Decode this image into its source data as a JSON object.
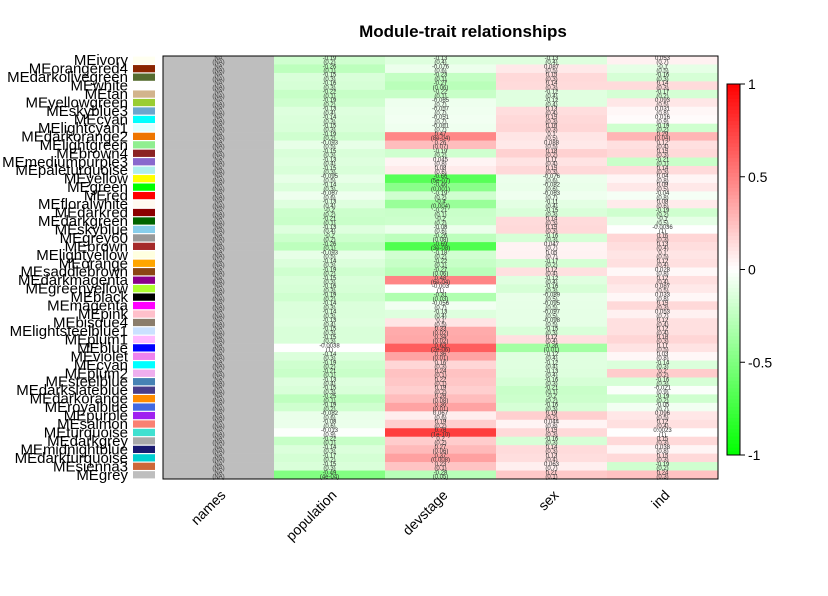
{
  "chart_data": {
    "type": "heatmap",
    "title": "Module-trait relationships",
    "columns": [
      "names",
      "population",
      "devstage",
      "sex",
      "ind"
    ],
    "rows": [
      "MEivory",
      "MEorangered4",
      "MEdarkolivegreen",
      "MEwhite",
      "MEtan",
      "MEyellowgreen",
      "MEskyblue3",
      "MEcyan",
      "MElightcyan1",
      "MEdarkorange2",
      "MElightgreen",
      "MEbrown4",
      "MEmediumpurple3",
      "MEpaleturquoise",
      "MEyellow",
      "MEgreen",
      "MEred",
      "MEfloralwhite",
      "MEdarkred",
      "MEdarkgreen",
      "MEskyblue",
      "MEgrey60",
      "MEbrown",
      "MElightyellow",
      "MEorange",
      "MEsaddlebrown",
      "MEdarkmagenta",
      "MEgreenyellow",
      "MEblack",
      "MEmagenta",
      "MEpink",
      "MEbisque4",
      "MElightsteelblue1",
      "MEplum1",
      "MEblue",
      "MEviolet",
      "MEcyan",
      "MEplum2",
      "MEsteelblue",
      "MEdarkslateblue",
      "MEdarkorange",
      "MEroyalblue",
      "MEpurple",
      "MEsalmon",
      "MEturquoise",
      "MEdarkgrey",
      "MEmidnightblue",
      "MEdarkturquoise",
      "MEsienna3",
      "MEgrey"
    ],
    "row_labels_visible": [
      "MEivory",
      "MEorangered4",
      "MEdarkolivegreen",
      "MEwhite",
      "MEtan",
      "MEyellowgreen",
      "MEskyblue3",
      "MEcyan",
      "MElightcyan1",
      "MEdarkorange2",
      "MElightgreen",
      "MEbrown4",
      "MEmediumpurple3",
      "MEpaleturquoise",
      "MEyellow",
      "MEgreen",
      "MEred",
      "MEfloralwhite",
      "MEdarkred",
      "MEdarkgreen",
      "MEskyblue",
      "MEgrey60",
      "MEbrown",
      "MElightyellow",
      "MEorange",
      "MEsaddlebrown",
      "MEdarkmagenta",
      "MEgreenyellow",
      "MEblack",
      "MEmagenta",
      "MEpink",
      "MEbisque4",
      "MElightsteelblue1",
      "MEplum1",
      "MEblue",
      "MEviolet",
      "MEcyan",
      "MEplum2",
      "MEsteelblue",
      "MEdarkslateblue",
      "MEdarkorange",
      "MEroyalblue",
      "MEpurple",
      "MEsalmon",
      "MEturquoise",
      "MEdarkgrey",
      "MEmidnightblue",
      "MEdarkturquoise",
      "MEsienna3",
      "MEgrey"
    ],
    "module_colors": [
      "#fffff0",
      "#8b2500",
      "#556b2f",
      "#ffffff",
      "#d2b48c",
      "#9acd32",
      "#6ca6cd",
      "#00ffff",
      "#e0ffff",
      "#ee7600",
      "#90ee90",
      "#8b2323",
      "#8968cd",
      "#afeeee",
      "#ffff00",
      "#00ff00",
      "#ff0000",
      "#fffaf0",
      "#8b0000",
      "#006400",
      "#87ceeb",
      "#999999",
      "#a52a2a",
      "#ffffe0",
      "#ffa500",
      "#8b4513",
      "#8b008b",
      "#adff2f",
      "#000000",
      "#ff00ff",
      "#ffc0cb",
      "#8b7d6b",
      "#cae1ff",
      "#ffbbff",
      "#0000ff",
      "#ee82ee",
      "#00ffff",
      "#eeaeee",
      "#4682b4",
      "#483d8b",
      "#ff8c00",
      "#4169e1",
      "#a020f0",
      "#fa8072",
      "#40e0d0",
      "#a9a9a9",
      "#191970",
      "#00ced1",
      "#cd6839",
      "#bebebe"
    ],
    "values": {
      "population": [
        -0.19,
        -0.26,
        -0.15,
        -0.16,
        -0.22,
        -0.19,
        -0.13,
        -0.14,
        -0.15,
        -0.19,
        -0.093,
        -0.15,
        -0.13,
        -0.15,
        -0.095,
        -0.14,
        -0.067,
        -0.13,
        -0.2,
        -0.21,
        -0.13,
        -0.2,
        -0.26,
        -0.093,
        -0.14,
        -0.19,
        -0.15,
        -0.16,
        -0.19,
        -0.14,
        -0.14,
        -0.13,
        -0.15,
        -0.15,
        -0.0038,
        -0.14,
        -0.19,
        -0.21,
        -0.13,
        -0.15,
        -0.25,
        -0.19,
        -0.082,
        -0.08,
        -0.013,
        -0.22,
        -0.14,
        -0.17,
        -0.15,
        -0.49
      ],
      "devstage": [
        -0.13,
        -0.076,
        -0.23,
        -0.27,
        -0.22,
        -0.065,
        -0.057,
        -0.051,
        -0.061,
        0.47,
        0.26,
        -0.19,
        0.045,
        0.08,
        -0.66,
        -0.46,
        -0.19,
        -0.4,
        -0.21,
        -0.2,
        -0.08,
        -0.26,
        -0.69,
        -0.18,
        -0.22,
        -0.27,
        0.48,
        -0.003,
        -0.31,
        -0.056,
        -0.13,
        0.1,
        0.33,
        0.34,
        0.63,
        0.36,
        0.16,
        0.24,
        0.22,
        0.19,
        0.26,
        0.36,
        0.067,
        0.19,
        0.76,
        0.2,
        0.27,
        0.37,
        0.23,
        -0.28
      ],
      "sex": [
        -0.13,
        0.087,
        0.15,
        0.14,
        -0.12,
        -0.12,
        0.13,
        0.15,
        0.16,
        0.1,
        0.088,
        0.18,
        0.11,
        0.15,
        -0.076,
        -0.082,
        -0.063,
        -0.11,
        -0.15,
        0.14,
        0.15,
        -0.16,
        0.047,
        0.05,
        -0.17,
        0.12,
        -0.12,
        -0.16,
        -0.089,
        -0.095,
        -0.097,
        -0.098,
        -0.15,
        0.12,
        -0.36,
        -0.12,
        -0.12,
        -0.13,
        -0.16,
        -0.21,
        -0.2,
        -0.16,
        0.19,
        0.044,
        0.15,
        -0.16,
        0.14,
        0.13,
        0.063,
        0.21
      ],
      "ind": [
        0.053,
        -0.1,
        -0.16,
        0.14,
        -0.17,
        0.093,
        0.031,
        0.016,
        -0.19,
        0.29,
        0.12,
        0.15,
        -0.21,
        0.14,
        0.04,
        0.09,
        -0.04,
        0.08,
        -0.19,
        -0.1,
        -0.0036,
        0.16,
        0.13,
        0.1,
        0.12,
        0.028,
        0.12,
        0.087,
        0.033,
        0.15,
        0.053,
        0.12,
        0.12,
        0.16,
        0.11,
        0.03,
        -0.14,
        0.2,
        -0.16,
        -0.021,
        -0.19,
        -0.05,
        0.096,
        0.12,
        0.0023,
        0.15,
        0.038,
        0.15,
        -0.19,
        0.24
      ]
    },
    "cell_text": {
      "names": [
        "(NA)",
        "(NA)",
        "(NA)",
        "(NA)",
        "(NA)",
        "(NA)",
        "(NA)",
        "(NA)",
        "(NA)",
        "(NA)",
        "(NA)",
        "(NA)",
        "(NA)",
        "(NA)",
        "(NA)",
        "(NA)",
        "(NA)",
        "(NA)",
        "(NA)",
        "(NA)",
        "(NA)",
        "(NA)",
        "(NA)",
        "(NA)",
        "(NA)",
        "(NA)",
        "(NA)",
        "(NA)",
        "(NA)",
        "(NA)",
        "(NA)",
        "(NA)",
        "(NA)",
        "(NA)",
        "(NA)",
        "(NA)",
        "(NA)",
        "(NA)",
        "(NA)",
        "(NA)",
        "(NA)",
        "(NA)",
        "(NA)",
        "(NA)",
        "(NA)",
        "(NA)",
        "(NA)",
        "(NA)",
        "(NA)",
        "(NA)"
      ],
      "population_p": [
        "(0.2)",
        "(0.1)",
        "(0.3)",
        "(0.3)",
        "(0.1)",
        "(0.2)",
        "(0.4)",
        "(0.3)",
        "(0.3)",
        "(0.2)",
        "(0.5)",
        "(0.3)",
        "(0.4)",
        "(0.3)",
        "(0.5)",
        "(0.3)",
        "(0.6)",
        "(0.4)",
        "(0.2)",
        "(0.1)",
        "(0.4)",
        "(0.2)",
        "(0.1)",
        "(0.5)",
        "(0.3)",
        "(0.2)",
        "(0.3)",
        "(0.3)",
        "(0.2)",
        "(0.3)",
        "(0.3)",
        "(0.4)",
        "(0.3)",
        "(0.3)",
        "(1)",
        "(0.3)",
        "(0.2)",
        "(0.1)",
        "(0.4)",
        "(0.3)",
        "(0.1)",
        "(0.2)",
        "(0.6)",
        "(0.6)",
        "(0.9)",
        "(0.1)",
        "(0.3)",
        "(0.2)",
        "(0.3)",
        "(4e-04)"
      ],
      "devstage_p": [
        "(0.4)",
        "(0.6)",
        "(0.1)",
        "(0.06)",
        "(0.1)",
        "(0.7)",
        "(0.7)",
        "(0.7)",
        "(0.7)",
        "(8e-04)",
        "(0.07)",
        "(0.2)",
        "(0.8)",
        "(0.6)",
        "(5e-07)",
        "(0.001)",
        "(0.2)",
        "(0.004)",
        "(0.1)",
        "(0.2)",
        "(0.6)",
        "(0.08)",
        "(3e-08)",
        "(0.2)",
        "(0.1)",
        "(0.06)",
        "(6e-04)",
        "(1)",
        "(0.03)",
        "(0.7)",
        "(0.4)",
        "(0.5)",
        "(0.02)",
        "(0.02)",
        "(2e-06)",
        "(0.01)",
        "(0.3)",
        "(0.1)",
        "(0.1)",
        "(0.2)",
        "(0.08)",
        "(0.01)",
        "(0.6)",
        "(0.2)",
        "(1e-10)",
        "(0.2)",
        "(0.06)",
        "(0.008)",
        "(0.1)",
        "(0.05)"
      ],
      "sex_p": [
        "(0.4)",
        "(0.5)",
        "(0.3)",
        "(0.3)",
        "(0.4)",
        "(0.4)",
        "(0.4)",
        "(0.3)",
        "(0.3)",
        "(0.5)",
        "(0.5)",
        "(0.2)",
        "(0.4)",
        "(0.3)",
        "(0.6)",
        "(0.6)",
        "(0.7)",
        "(0.4)",
        "(0.3)",
        "(0.3)",
        "(0.3)",
        "(0.3)",
        "(0.7)",
        "(0.7)",
        "(0.2)",
        "(0.4)",
        "(0.4)",
        "(0.3)",
        "(0.5)",
        "(0.5)",
        "(0.5)",
        "(0.5)",
        "(0.3)",
        "(0.4)",
        "(0.01)",
        "(0.4)",
        "(0.4)",
        "(0.4)",
        "(0.3)",
        "(0.1)",
        "(0.2)",
        "(0.3)",
        "(0.2)",
        "(0.8)",
        "(0.3)",
        "(0.3)",
        "(0.3)",
        "(0.4)",
        "(0.7)",
        "(0.1)"
      ],
      "ind_p": [
        "(0.7)",
        "(0.5)",
        "(0.3)",
        "(0.3)",
        "(0.2)",
        "(0.5)",
        "(0.8)",
        "(0.9)",
        "(0.2)",
        "(0.04)",
        "(0.4)",
        "(0.3)",
        "(0.1)",
        "(0.3)",
        "(0.8)",
        "(0.5)",
        "(0.8)",
        "(0.6)",
        "(0.2)",
        "(0.5)",
        "(1)",
        "(0.3)",
        "(0.4)",
        "(0.5)",
        "(0.4)",
        "(0.8)",
        "(0.4)",
        "(0.5)",
        "(0.8)",
        "(0.3)",
        "(0.7)",
        "(0.4)",
        "(0.4)",
        "(0.3)",
        "(0.5)",
        "(0.8)",
        "(0.3)",
        "(0.2)",
        "(0.3)",
        "(0.9)",
        "(0.2)",
        "(0.7)",
        "(0.5)",
        "(0.4)",
        "(1)",
        "(0.3)",
        "(0.8)",
        "(0.3)",
        "(0.2)",
        "(0.3)"
      ]
    },
    "colorscale": {
      "min": -1,
      "max": 1,
      "low": "#00ff00",
      "mid": "#ffffff",
      "high": "#ff0000",
      "na_color": "#bebebe"
    },
    "colorbar_ticks": [
      "1",
      "0.5",
      "0",
      "-0.5",
      "-1"
    ],
    "colorbar_tick_values": [
      1,
      0.5,
      0,
      -0.5,
      -1
    ]
  }
}
